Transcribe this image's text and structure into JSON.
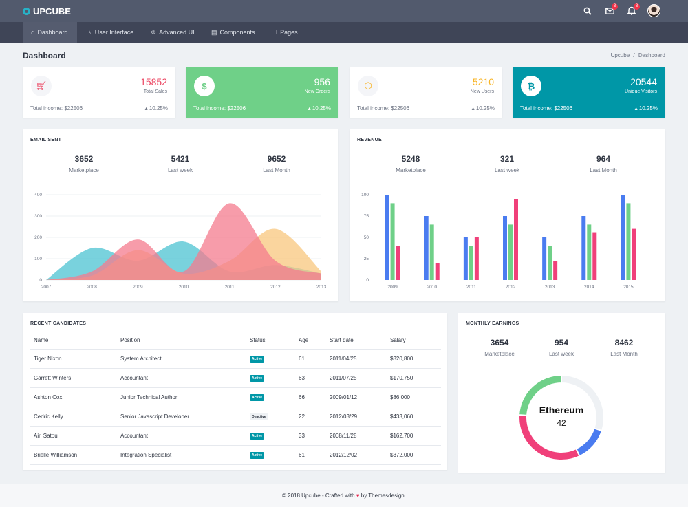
{
  "brand": {
    "name": "UPCUBE"
  },
  "topbar": {
    "mail_count": "3",
    "notification_count": "3"
  },
  "nav": {
    "items": [
      {
        "label": "Dashboard",
        "icon": "home-icon"
      },
      {
        "label": "User Interface",
        "icon": "bulb-icon"
      },
      {
        "label": "Advanced UI",
        "icon": "crown-icon"
      },
      {
        "label": "Components",
        "icon": "layout-icon"
      },
      {
        "label": "Pages",
        "icon": "pages-icon"
      }
    ]
  },
  "page": {
    "title": "Dashboard",
    "breadcrumb_root": "Upcube",
    "breadcrumb_sep": "/",
    "breadcrumb_current": "Dashboard"
  },
  "stats": [
    {
      "value": "15852",
      "label": "Total Sales",
      "footer": "Total income: $22506",
      "change": "10.25%",
      "icon": "cart-icon",
      "accent": "#ec4561"
    },
    {
      "value": "956",
      "label": "New Orders",
      "footer": "Total income: $22506",
      "change": "10.25%",
      "icon": "dollar-icon",
      "accent": "#6fd088"
    },
    {
      "value": "5210",
      "label": "New Users",
      "footer": "Total income: $22506",
      "change": "10.25%",
      "icon": "cube-icon",
      "accent": "#f8b425"
    },
    {
      "value": "20544",
      "label": "Unique Visitors",
      "footer": "Total income: $22506",
      "change": "10.25%",
      "icon": "bitcoin-icon",
      "accent": "#0097a7"
    }
  ],
  "email_sent": {
    "title": "EMAIL SENT",
    "kpis": [
      {
        "value": "3652",
        "label": "Marketplace"
      },
      {
        "value": "5421",
        "label": "Last week"
      },
      {
        "value": "9652",
        "label": "Last Month"
      }
    ]
  },
  "revenue": {
    "title": "REVENUE",
    "kpis": [
      {
        "value": "5248",
        "label": "Marketplace"
      },
      {
        "value": "321",
        "label": "Last week"
      },
      {
        "value": "964",
        "label": "Last Month"
      }
    ]
  },
  "candidates": {
    "title": "RECENT CANDIDATES",
    "columns": [
      "Name",
      "Position",
      "Status",
      "Age",
      "Start date",
      "Salary"
    ],
    "rows": [
      [
        "Tiger Nixon",
        "System Architect",
        "Active",
        "61",
        "2011/04/25",
        "$320,800"
      ],
      [
        "Garrett Winters",
        "Accountant",
        "Active",
        "63",
        "2011/07/25",
        "$170,750"
      ],
      [
        "Ashton Cox",
        "Junior Technical Author",
        "Active",
        "66",
        "2009/01/12",
        "$86,000"
      ],
      [
        "Cedric Kelly",
        "Senior Javascript Developer",
        "Deactive",
        "22",
        "2012/03/29",
        "$433,060"
      ],
      [
        "Airi Satou",
        "Accountant",
        "Active",
        "33",
        "2008/11/28",
        "$162,700"
      ],
      [
        "Brielle Williamson",
        "Integration Specialist",
        "Active",
        "61",
        "2012/12/02",
        "$372,000"
      ]
    ]
  },
  "monthly_earnings": {
    "title": "MONTHLY EARNINGS",
    "kpis": [
      {
        "value": "3654",
        "label": "Marketplace"
      },
      {
        "value": "954",
        "label": "Last week"
      },
      {
        "value": "8462",
        "label": "Last Month"
      }
    ]
  },
  "footer": {
    "text_before": "© 2018 Upcube - Crafted with",
    "text_after": "by Themesdesign."
  },
  "chart_data": [
    {
      "type": "area",
      "x": [
        "2007",
        "2008",
        "2009",
        "2010",
        "2011",
        "2012",
        "2013"
      ],
      "ylim": [
        0,
        400
      ],
      "yticks": [
        0,
        100,
        200,
        300,
        400
      ],
      "series": [
        {
          "color": "#4cc3d2",
          "values": [
            0,
            150,
            90,
            180,
            40,
            70,
            30
          ]
        },
        {
          "color": "#f8c77e",
          "values": [
            0,
            20,
            140,
            30,
            90,
            240,
            40
          ]
        },
        {
          "color": "#f47b8d",
          "values": [
            0,
            40,
            190,
            40,
            360,
            90,
            30
          ]
        }
      ]
    },
    {
      "type": "bar",
      "categories": [
        "2009",
        "2010",
        "2011",
        "2012",
        "2013",
        "2014",
        "2015"
      ],
      "ylim": [
        0,
        100
      ],
      "yticks": [
        0,
        25,
        50,
        75,
        100
      ],
      "series": [
        {
          "color": "#4a7cf0",
          "values": [
            100,
            75,
            50,
            75,
            50,
            75,
            100
          ]
        },
        {
          "color": "#6fd088",
          "values": [
            90,
            65,
            40,
            65,
            40,
            65,
            90
          ]
        },
        {
          "color": "#f0407a",
          "values": [
            40,
            20,
            50,
            95,
            22,
            56,
            60
          ]
        }
      ]
    },
    {
      "type": "pie",
      "center_label": "Ethereum",
      "center_value": "42",
      "slices": [
        {
          "value": 30,
          "color": "#eef1f4"
        },
        {
          "value": 13,
          "color": "#4a7cf0"
        },
        {
          "value": 33,
          "color": "#f0407a"
        },
        {
          "value": 24,
          "color": "#6fd088"
        }
      ]
    }
  ]
}
